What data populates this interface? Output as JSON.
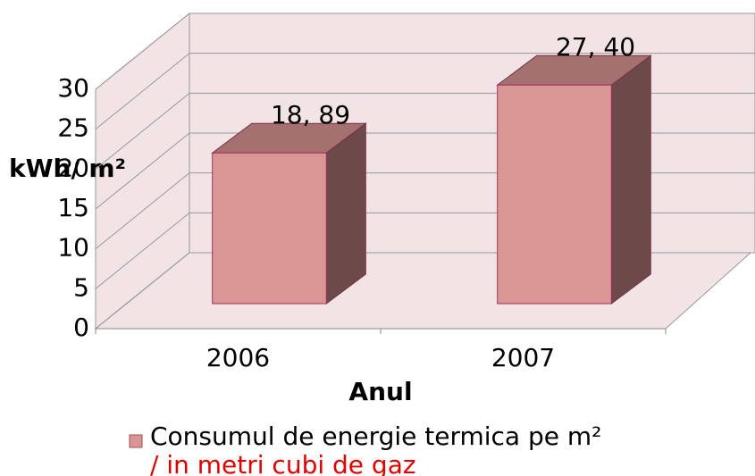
{
  "chart_data": {
    "type": "bar3d",
    "y_label": "kWh/ m²",
    "x_label": "Anul",
    "categories": [
      "2006",
      "2007"
    ],
    "series": [
      {
        "name": "Consumul de energie termica pe m²",
        "color": "#d99694",
        "values": [
          18.89,
          27.4
        ],
        "value_labels": [
          "18, 89",
          "27, 40"
        ]
      }
    ],
    "legend_note": "/ in metri cubi de gaz",
    "ylim": [
      0,
      30
    ],
    "yticks": [
      0,
      5,
      10,
      15,
      20,
      25,
      30
    ],
    "grid": true
  }
}
